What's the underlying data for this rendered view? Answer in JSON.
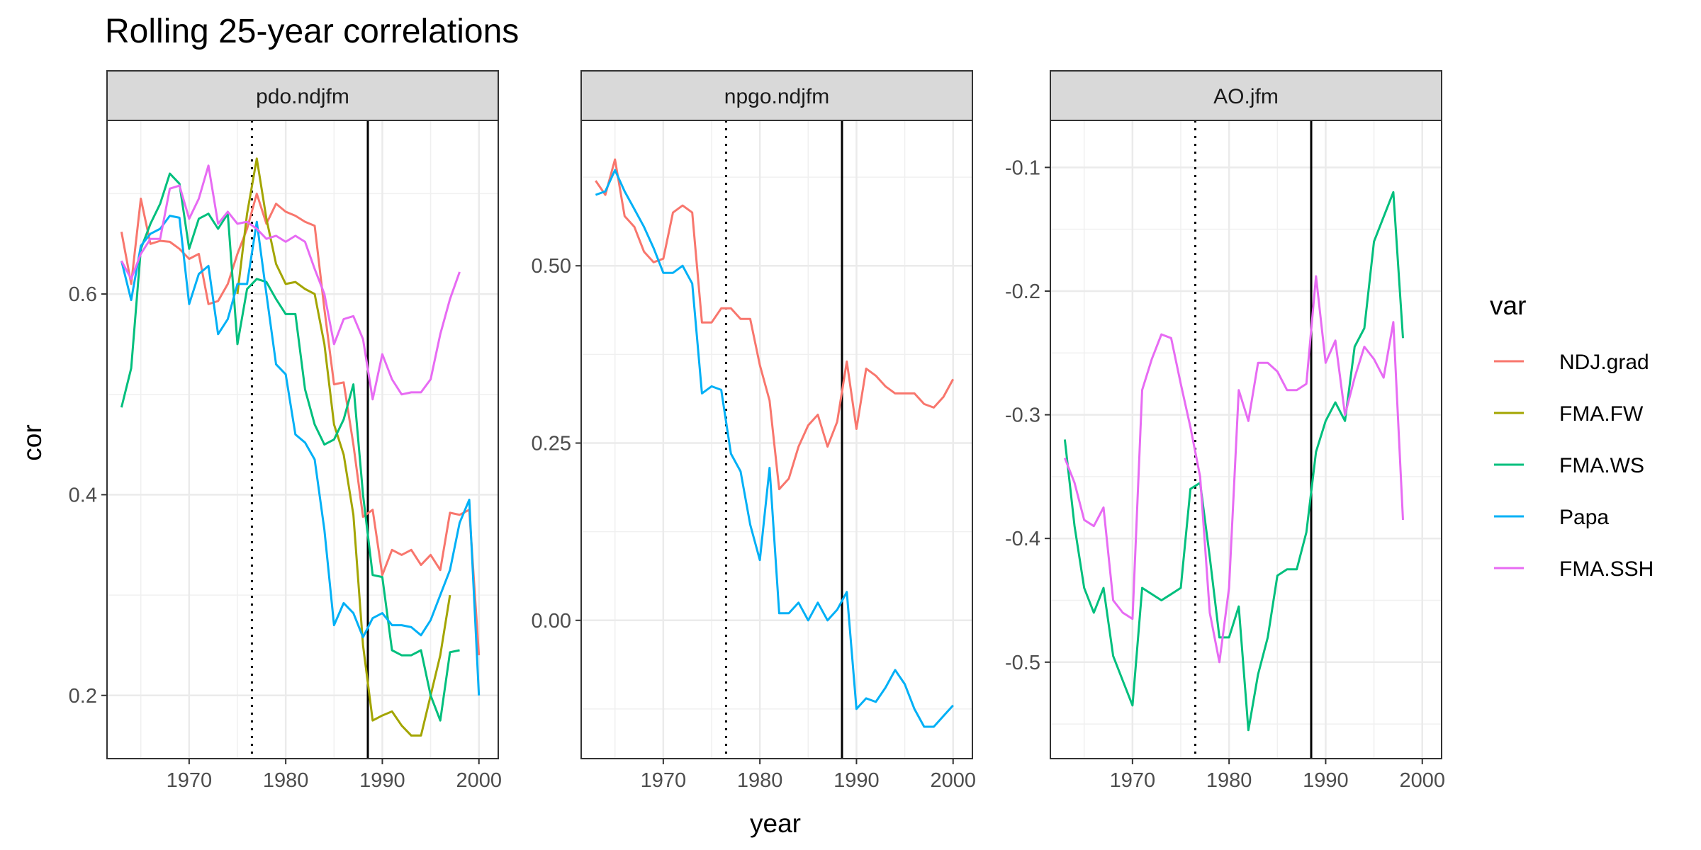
{
  "chart_data": {
    "type": "line",
    "title": "Rolling 25-year correlations",
    "xlabel": "year",
    "ylabel": "cor",
    "grid": true,
    "legend": {
      "title": "var",
      "placement": "right",
      "entries": [
        {
          "name": "NDJ.grad",
          "color": "#F8766D"
        },
        {
          "name": "FMA.FW",
          "color": "#A3A500"
        },
        {
          "name": "FMA.WS",
          "color": "#00BF7D"
        },
        {
          "name": "Papa",
          "color": "#00B0F6"
        },
        {
          "name": "FMA.SSH",
          "color": "#E76BF3"
        }
      ]
    },
    "reference_lines": [
      {
        "x": 1976.5,
        "style": "dotted"
      },
      {
        "x": 1988.5,
        "style": "solid"
      }
    ],
    "panels": [
      {
        "name": "pdo.ndjfm",
        "xlim": [
          1961.5,
          2002
        ],
        "ylim": [
          0.137,
          0.773
        ],
        "xticks": [
          1970,
          1980,
          1990,
          2000
        ],
        "yticks": [
          0.2,
          0.4,
          0.6
        ],
        "ytick_labels": [
          "0.2",
          "0.4",
          "0.6"
        ],
        "show_ylabel": true,
        "show_xlabel": false,
        "series": [
          {
            "name": "NDJ.grad",
            "color": "#F8766D",
            "x": [
              1963,
              1964,
              1965,
              1966,
              1967,
              1968,
              1969,
              1970,
              1971,
              1972,
              1973,
              1974,
              1975,
              1976,
              1977,
              1978,
              1979,
              1980,
              1981,
              1982,
              1983,
              1984,
              1985,
              1986,
              1987,
              1988,
              1989,
              1990,
              1991,
              1992,
              1993,
              1994,
              1995,
              1996,
              1997,
              1998,
              1999,
              2000
            ],
            "values": [
              0.662,
              0.61,
              0.695,
              0.65,
              0.653,
              0.652,
              0.645,
              0.635,
              0.64,
              0.59,
              0.593,
              0.61,
              0.64,
              0.665,
              0.7,
              0.67,
              0.69,
              0.682,
              0.678,
              0.672,
              0.668,
              0.585,
              0.51,
              0.512,
              0.45,
              0.378,
              0.385,
              0.32,
              0.345,
              0.34,
              0.345,
              0.33,
              0.34,
              0.325,
              0.382,
              0.38,
              0.385,
              0.24
            ]
          },
          {
            "name": "FMA.FW",
            "color": "#A3A500",
            "x": [
              1975,
              1976,
              1977,
              1978,
              1979,
              1980,
              1981,
              1982,
              1983,
              1984,
              1985,
              1986,
              1987,
              1988,
              1989,
              1990,
              1991,
              1992,
              1993,
              1994,
              1995,
              1996,
              1997
            ],
            "values": [
              0.6,
              0.68,
              0.735,
              0.675,
              0.63,
              0.61,
              0.612,
              0.605,
              0.6,
              0.55,
              0.47,
              0.44,
              0.38,
              0.25,
              0.175,
              0.18,
              0.184,
              0.17,
              0.16,
              0.16,
              0.2,
              0.24,
              0.3
            ]
          },
          {
            "name": "FMA.WS",
            "color": "#00BF7D",
            "x": [
              1963,
              1964,
              1965,
              1966,
              1967,
              1968,
              1969,
              1970,
              1971,
              1972,
              1973,
              1974,
              1975,
              1976,
              1977,
              1978,
              1979,
              1980,
              1981,
              1982,
              1983,
              1984,
              1985,
              1986,
              1987,
              1988,
              1989,
              1990,
              1991,
              1992,
              1993,
              1994,
              1995,
              1996,
              1997,
              1998
            ],
            "values": [
              0.487,
              0.526,
              0.645,
              0.67,
              0.69,
              0.72,
              0.71,
              0.645,
              0.675,
              0.68,
              0.665,
              0.68,
              0.55,
              0.605,
              0.615,
              0.612,
              0.595,
              0.58,
              0.58,
              0.505,
              0.47,
              0.45,
              0.455,
              0.475,
              0.51,
              0.4,
              0.32,
              0.318,
              0.245,
              0.24,
              0.24,
              0.245,
              0.2,
              0.175,
              0.243,
              0.245
            ]
          },
          {
            "name": "Papa",
            "color": "#00B0F6",
            "x": [
              1963,
              1964,
              1965,
              1966,
              1967,
              1968,
              1969,
              1970,
              1971,
              1972,
              1973,
              1974,
              1975,
              1976,
              1977,
              1978,
              1979,
              1980,
              1981,
              1982,
              1983,
              1984,
              1985,
              1986,
              1987,
              1988,
              1989,
              1990,
              1991,
              1992,
              1993,
              1994,
              1995,
              1996,
              1997,
              1998,
              1999,
              2000
            ],
            "values": [
              0.633,
              0.594,
              0.648,
              0.66,
              0.665,
              0.678,
              0.676,
              0.59,
              0.62,
              0.628,
              0.56,
              0.575,
              0.61,
              0.61,
              0.672,
              0.6,
              0.53,
              0.52,
              0.46,
              0.452,
              0.435,
              0.365,
              0.27,
              0.292,
              0.282,
              0.258,
              0.277,
              0.282,
              0.27,
              0.27,
              0.268,
              0.26,
              0.275,
              0.3,
              0.325,
              0.372,
              0.395,
              0.2
            ]
          },
          {
            "name": "FMA.SSH",
            "color": "#E76BF3",
            "x": [
              1963,
              1964,
              1965,
              1966,
              1967,
              1968,
              1969,
              1970,
              1971,
              1972,
              1973,
              1974,
              1975,
              1976,
              1977,
              1978,
              1979,
              1980,
              1981,
              1982,
              1983,
              1984,
              1985,
              1986,
              1987,
              1988,
              1989,
              1990,
              1991,
              1992,
              1993,
              1994,
              1995,
              1996,
              1997,
              1998
            ],
            "values": [
              0.633,
              0.615,
              0.64,
              0.655,
              0.655,
              0.705,
              0.708,
              0.675,
              0.695,
              0.728,
              0.67,
              0.682,
              0.67,
              0.672,
              0.665,
              0.655,
              0.658,
              0.652,
              0.658,
              0.652,
              0.625,
              0.6,
              0.55,
              0.575,
              0.578,
              0.555,
              0.495,
              0.54,
              0.515,
              0.5,
              0.502,
              0.502,
              0.515,
              0.56,
              0.595,
              0.622
            ]
          }
        ]
      },
      {
        "name": "npgo.ndjfm",
        "xlim": [
          1961.5,
          2002
        ],
        "ylim": [
          -0.195,
          0.705
        ],
        "xticks": [
          1970,
          1980,
          1990,
          2000
        ],
        "yticks": [
          0.0,
          0.25,
          0.5
        ],
        "ytick_labels": [
          "0.00",
          "0.25",
          "0.50"
        ],
        "show_ylabel": false,
        "show_xlabel": true,
        "series": [
          {
            "name": "NDJ.grad",
            "color": "#F8766D",
            "x": [
              1963,
              1964,
              1965,
              1966,
              1967,
              1968,
              1969,
              1970,
              1971,
              1972,
              1973,
              1974,
              1975,
              1976,
              1977,
              1978,
              1979,
              1980,
              1981,
              1982,
              1983,
              1984,
              1985,
              1986,
              1987,
              1988,
              1989,
              1990,
              1991,
              1992,
              1993,
              1994,
              1995,
              1996,
              1997,
              1998,
              1999,
              2000
            ],
            "values": [
              0.62,
              0.6,
              0.65,
              0.57,
              0.555,
              0.52,
              0.505,
              0.51,
              0.575,
              0.585,
              0.575,
              0.42,
              0.42,
              0.44,
              0.44,
              0.425,
              0.425,
              0.36,
              0.31,
              0.185,
              0.2,
              0.245,
              0.275,
              0.29,
              0.245,
              0.28,
              0.365,
              0.27,
              0.355,
              0.345,
              0.33,
              0.32,
              0.32,
              0.32,
              0.305,
              0.3,
              0.315,
              0.34
            ]
          },
          {
            "name": "Papa",
            "color": "#00B0F6",
            "x": [
              1963,
              1964,
              1965,
              1966,
              1967,
              1968,
              1969,
              1970,
              1971,
              1972,
              1973,
              1974,
              1975,
              1976,
              1977,
              1978,
              1979,
              1980,
              1981,
              1982,
              1983,
              1984,
              1985,
              1986,
              1987,
              1988,
              1989,
              1990,
              1991,
              1992,
              1993,
              1994,
              1995,
              1996,
              1997,
              1998,
              1999,
              2000
            ],
            "values": [
              0.6,
              0.605,
              0.635,
              0.605,
              0.58,
              0.555,
              0.525,
              0.49,
              0.49,
              0.5,
              0.475,
              0.32,
              0.33,
              0.325,
              0.235,
              0.21,
              0.135,
              0.085,
              0.215,
              0.01,
              0.01,
              0.025,
              0.0,
              0.025,
              0.0,
              0.015,
              0.04,
              -0.125,
              -0.11,
              -0.115,
              -0.095,
              -0.07,
              -0.09,
              -0.125,
              -0.15,
              -0.15,
              -0.135,
              -0.12
            ]
          }
        ]
      },
      {
        "name": "AO.jfm",
        "xlim": [
          1961.5,
          2002
        ],
        "ylim": [
          -0.578,
          -0.062
        ],
        "xticks": [
          1970,
          1980,
          1990,
          2000
        ],
        "yticks": [
          -0.5,
          -0.4,
          -0.3,
          -0.2,
          -0.1
        ],
        "ytick_labels": [
          "-0.5",
          "-0.4",
          "-0.3",
          "-0.2",
          "-0.1"
        ],
        "show_ylabel": false,
        "show_xlabel": false,
        "series": [
          {
            "name": "FMA.WS",
            "color": "#00BF7D",
            "x": [
              1963,
              1964,
              1965,
              1966,
              1967,
              1968,
              1969,
              1970,
              1971,
              1972,
              1973,
              1974,
              1975,
              1976,
              1977,
              1978,
              1979,
              1980,
              1981,
              1982,
              1983,
              1984,
              1985,
              1986,
              1987,
              1988,
              1989,
              1990,
              1991,
              1992,
              1993,
              1994,
              1995,
              1996,
              1997,
              1998
            ],
            "values": [
              -0.32,
              -0.39,
              -0.44,
              -0.46,
              -0.44,
              -0.495,
              -0.515,
              -0.535,
              -0.44,
              -0.445,
              -0.45,
              -0.445,
              -0.44,
              -0.36,
              -0.355,
              -0.415,
              -0.48,
              -0.48,
              -0.455,
              -0.555,
              -0.51,
              -0.48,
              -0.43,
              -0.425,
              -0.425,
              -0.395,
              -0.33,
              -0.305,
              -0.29,
              -0.305,
              -0.245,
              -0.23,
              -0.16,
              -0.14,
              -0.12,
              -0.238
            ]
          },
          {
            "name": "FMA.SSH",
            "color": "#E76BF3",
            "x": [
              1963,
              1964,
              1965,
              1966,
              1967,
              1968,
              1969,
              1970,
              1971,
              1972,
              1973,
              1974,
              1975,
              1976,
              1977,
              1978,
              1979,
              1980,
              1981,
              1982,
              1983,
              1984,
              1985,
              1986,
              1987,
              1988,
              1989,
              1990,
              1991,
              1992,
              1993,
              1994,
              1995,
              1996,
              1997,
              1998
            ],
            "values": [
              -0.335,
              -0.355,
              -0.385,
              -0.39,
              -0.375,
              -0.45,
              -0.46,
              -0.465,
              -0.28,
              -0.255,
              -0.235,
              -0.238,
              -0.275,
              -0.31,
              -0.35,
              -0.46,
              -0.5,
              -0.44,
              -0.28,
              -0.305,
              -0.258,
              -0.258,
              -0.265,
              -0.28,
              -0.28,
              -0.275,
              -0.188,
              -0.258,
              -0.24,
              -0.3,
              -0.27,
              -0.245,
              -0.255,
              -0.27,
              -0.225,
              -0.385
            ]
          }
        ]
      }
    ]
  }
}
